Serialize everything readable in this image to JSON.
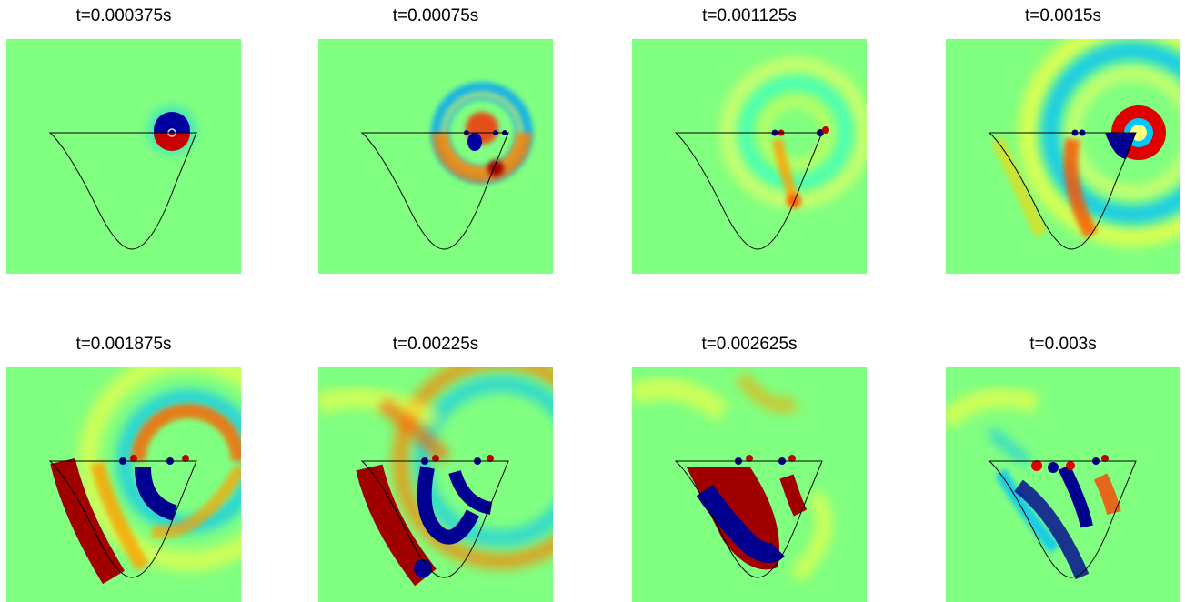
{
  "figure": {
    "colormap": "jet",
    "background_color": "#80ff80",
    "panels": [
      {
        "title": "t=0.000375s"
      },
      {
        "title": "t=0.00075s"
      },
      {
        "title": "t=0.001125s"
      },
      {
        "title": "t=0.0015s"
      },
      {
        "title": "t=0.001875s"
      },
      {
        "title": "t=0.00225s"
      },
      {
        "title": "t=0.002625s"
      },
      {
        "title": "t=0.003s"
      }
    ]
  }
}
